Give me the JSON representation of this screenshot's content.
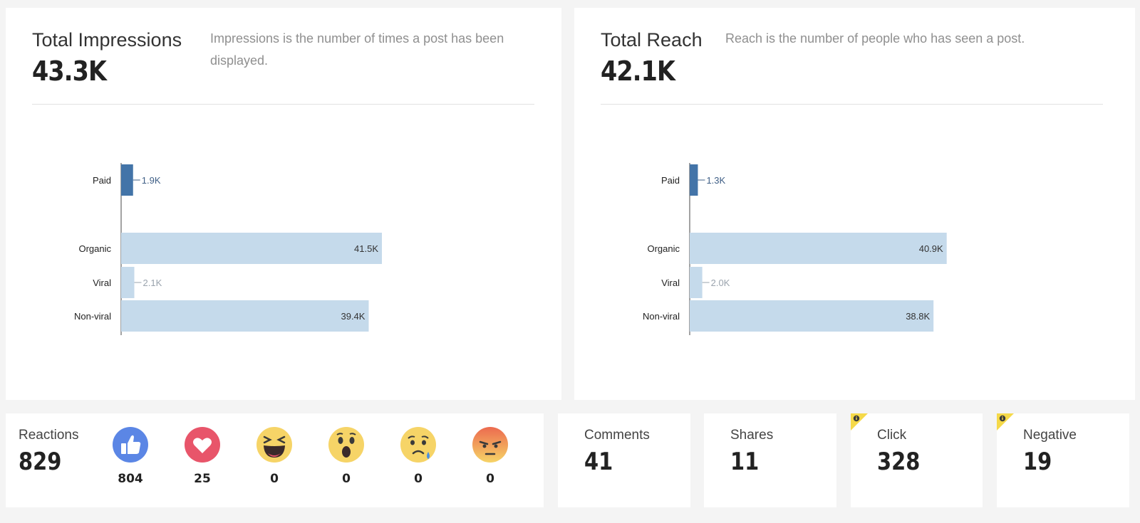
{
  "impressions": {
    "title": "Total Impressions",
    "value": "43.3K",
    "description": "Impressions is the number of times a post has been displayed.",
    "chart_data": {
      "type": "bar",
      "orientation": "horizontal",
      "categories": [
        "Paid",
        "Organic",
        "Viral",
        "Non-viral"
      ],
      "values": [
        1.9,
        41.5,
        2.1,
        39.4
      ],
      "unit": "K",
      "data_labels": [
        "1.9K",
        "41.5K",
        "2.1K",
        "39.4K"
      ],
      "colors": [
        "#4374a8",
        "#c5daeb",
        "#c5daeb",
        "#c5daeb"
      ],
      "grid": false
    }
  },
  "reach": {
    "title": "Total Reach",
    "value": "42.1K",
    "description": "Reach is the number of people who has seen a post.",
    "chart_data": {
      "type": "bar",
      "orientation": "horizontal",
      "categories": [
        "Paid",
        "Organic",
        "Viral",
        "Non-viral"
      ],
      "values": [
        1.3,
        40.9,
        2.0,
        38.8
      ],
      "unit": "K",
      "data_labels": [
        "1.3K",
        "40.9K",
        "2.0K",
        "38.8K"
      ],
      "colors": [
        "#4374a8",
        "#c5daeb",
        "#c5daeb",
        "#c5daeb"
      ],
      "grid": false
    }
  },
  "reactions": {
    "label": "Reactions",
    "total": "829",
    "items": [
      {
        "icon": "like-icon",
        "count": "804"
      },
      {
        "icon": "love-icon",
        "count": "25"
      },
      {
        "icon": "haha-icon",
        "count": "0"
      },
      {
        "icon": "wow-icon",
        "count": "0"
      },
      {
        "icon": "sad-icon",
        "count": "0"
      },
      {
        "icon": "angry-icon",
        "count": "0"
      }
    ]
  },
  "comments": {
    "label": "Comments",
    "value": "41"
  },
  "shares": {
    "label": "Shares",
    "value": "11"
  },
  "clicks": {
    "label": "Click",
    "value": "328",
    "badge_icon": "info-icon"
  },
  "negative": {
    "label": "Negative",
    "value": "19",
    "badge_icon": "info-icon"
  },
  "colors": {
    "paid_bar": "#4374a8",
    "organic_bar": "#c5daeb",
    "badge_yellow": "#f5d949",
    "like_blue": "#5b86e5",
    "love_red": "#e8556a"
  }
}
